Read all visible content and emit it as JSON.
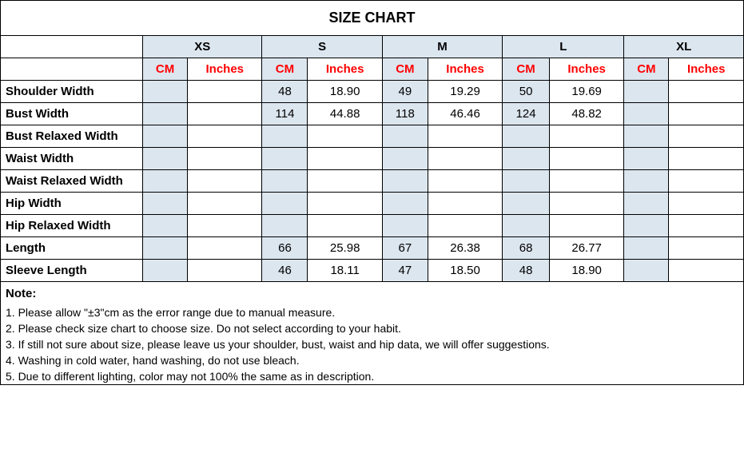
{
  "title": "SIZE CHART",
  "sizes": [
    "XS",
    "S",
    "M",
    "L",
    "XL"
  ],
  "units": {
    "cm": "CM",
    "in": "Inches"
  },
  "rows": [
    {
      "label": "Shoulder Width",
      "vals": {
        "XS": [
          "",
          ""
        ],
        "S": [
          "48",
          "18.90"
        ],
        "M": [
          "49",
          "19.29"
        ],
        "L": [
          "50",
          "19.69"
        ],
        "XL": [
          "",
          ""
        ]
      }
    },
    {
      "label": "Bust Width",
      "vals": {
        "XS": [
          "",
          ""
        ],
        "S": [
          "114",
          "44.88"
        ],
        "M": [
          "118",
          "46.46"
        ],
        "L": [
          "124",
          "48.82"
        ],
        "XL": [
          "",
          ""
        ]
      }
    },
    {
      "label": "Bust Relaxed Width",
      "vals": {
        "XS": [
          "",
          ""
        ],
        "S": [
          "",
          ""
        ],
        "M": [
          "",
          ""
        ],
        "L": [
          "",
          ""
        ],
        "XL": [
          "",
          ""
        ]
      }
    },
    {
      "label": "Waist Width",
      "vals": {
        "XS": [
          "",
          ""
        ],
        "S": [
          "",
          ""
        ],
        "M": [
          "",
          ""
        ],
        "L": [
          "",
          ""
        ],
        "XL": [
          "",
          ""
        ]
      }
    },
    {
      "label": "Waist Relaxed Width",
      "vals": {
        "XS": [
          "",
          ""
        ],
        "S": [
          "",
          ""
        ],
        "M": [
          "",
          ""
        ],
        "L": [
          "",
          ""
        ],
        "XL": [
          "",
          ""
        ]
      }
    },
    {
      "label": "Hip Width",
      "vals": {
        "XS": [
          "",
          ""
        ],
        "S": [
          "",
          ""
        ],
        "M": [
          "",
          ""
        ],
        "L": [
          "",
          ""
        ],
        "XL": [
          "",
          ""
        ]
      }
    },
    {
      "label": "Hip Relaxed Width",
      "vals": {
        "XS": [
          "",
          ""
        ],
        "S": [
          "",
          ""
        ],
        "M": [
          "",
          ""
        ],
        "L": [
          "",
          ""
        ],
        "XL": [
          "",
          ""
        ]
      }
    },
    {
      "label": "Length",
      "vals": {
        "XS": [
          "",
          ""
        ],
        "S": [
          "66",
          "25.98"
        ],
        "M": [
          "67",
          "26.38"
        ],
        "L": [
          "68",
          "26.77"
        ],
        "XL": [
          "",
          ""
        ]
      }
    },
    {
      "label": "Sleeve Length",
      "vals": {
        "XS": [
          "",
          ""
        ],
        "S": [
          "46",
          "18.11"
        ],
        "M": [
          "47",
          "18.50"
        ],
        "L": [
          "48",
          "18.90"
        ],
        "XL": [
          "",
          ""
        ]
      }
    }
  ],
  "note_title": "Note:",
  "notes": [
    "1. Please allow \"±3\"cm as the error range due to manual measure.",
    "2. Please check size chart to choose size. Do not select according to your habit.",
    "3. If still not sure about size, please leave us your shoulder, bust, waist and hip data, we will offer suggestions.",
    "4. Washing in cold water, hand washing, do not use bleach.",
    "5. Due to different lighting, color may not 100% the same as in description."
  ],
  "colors": {
    "shaded": "#dce6ef",
    "unit_text": "#ff0000",
    "border": "#000000",
    "bg": "#ffffff"
  }
}
